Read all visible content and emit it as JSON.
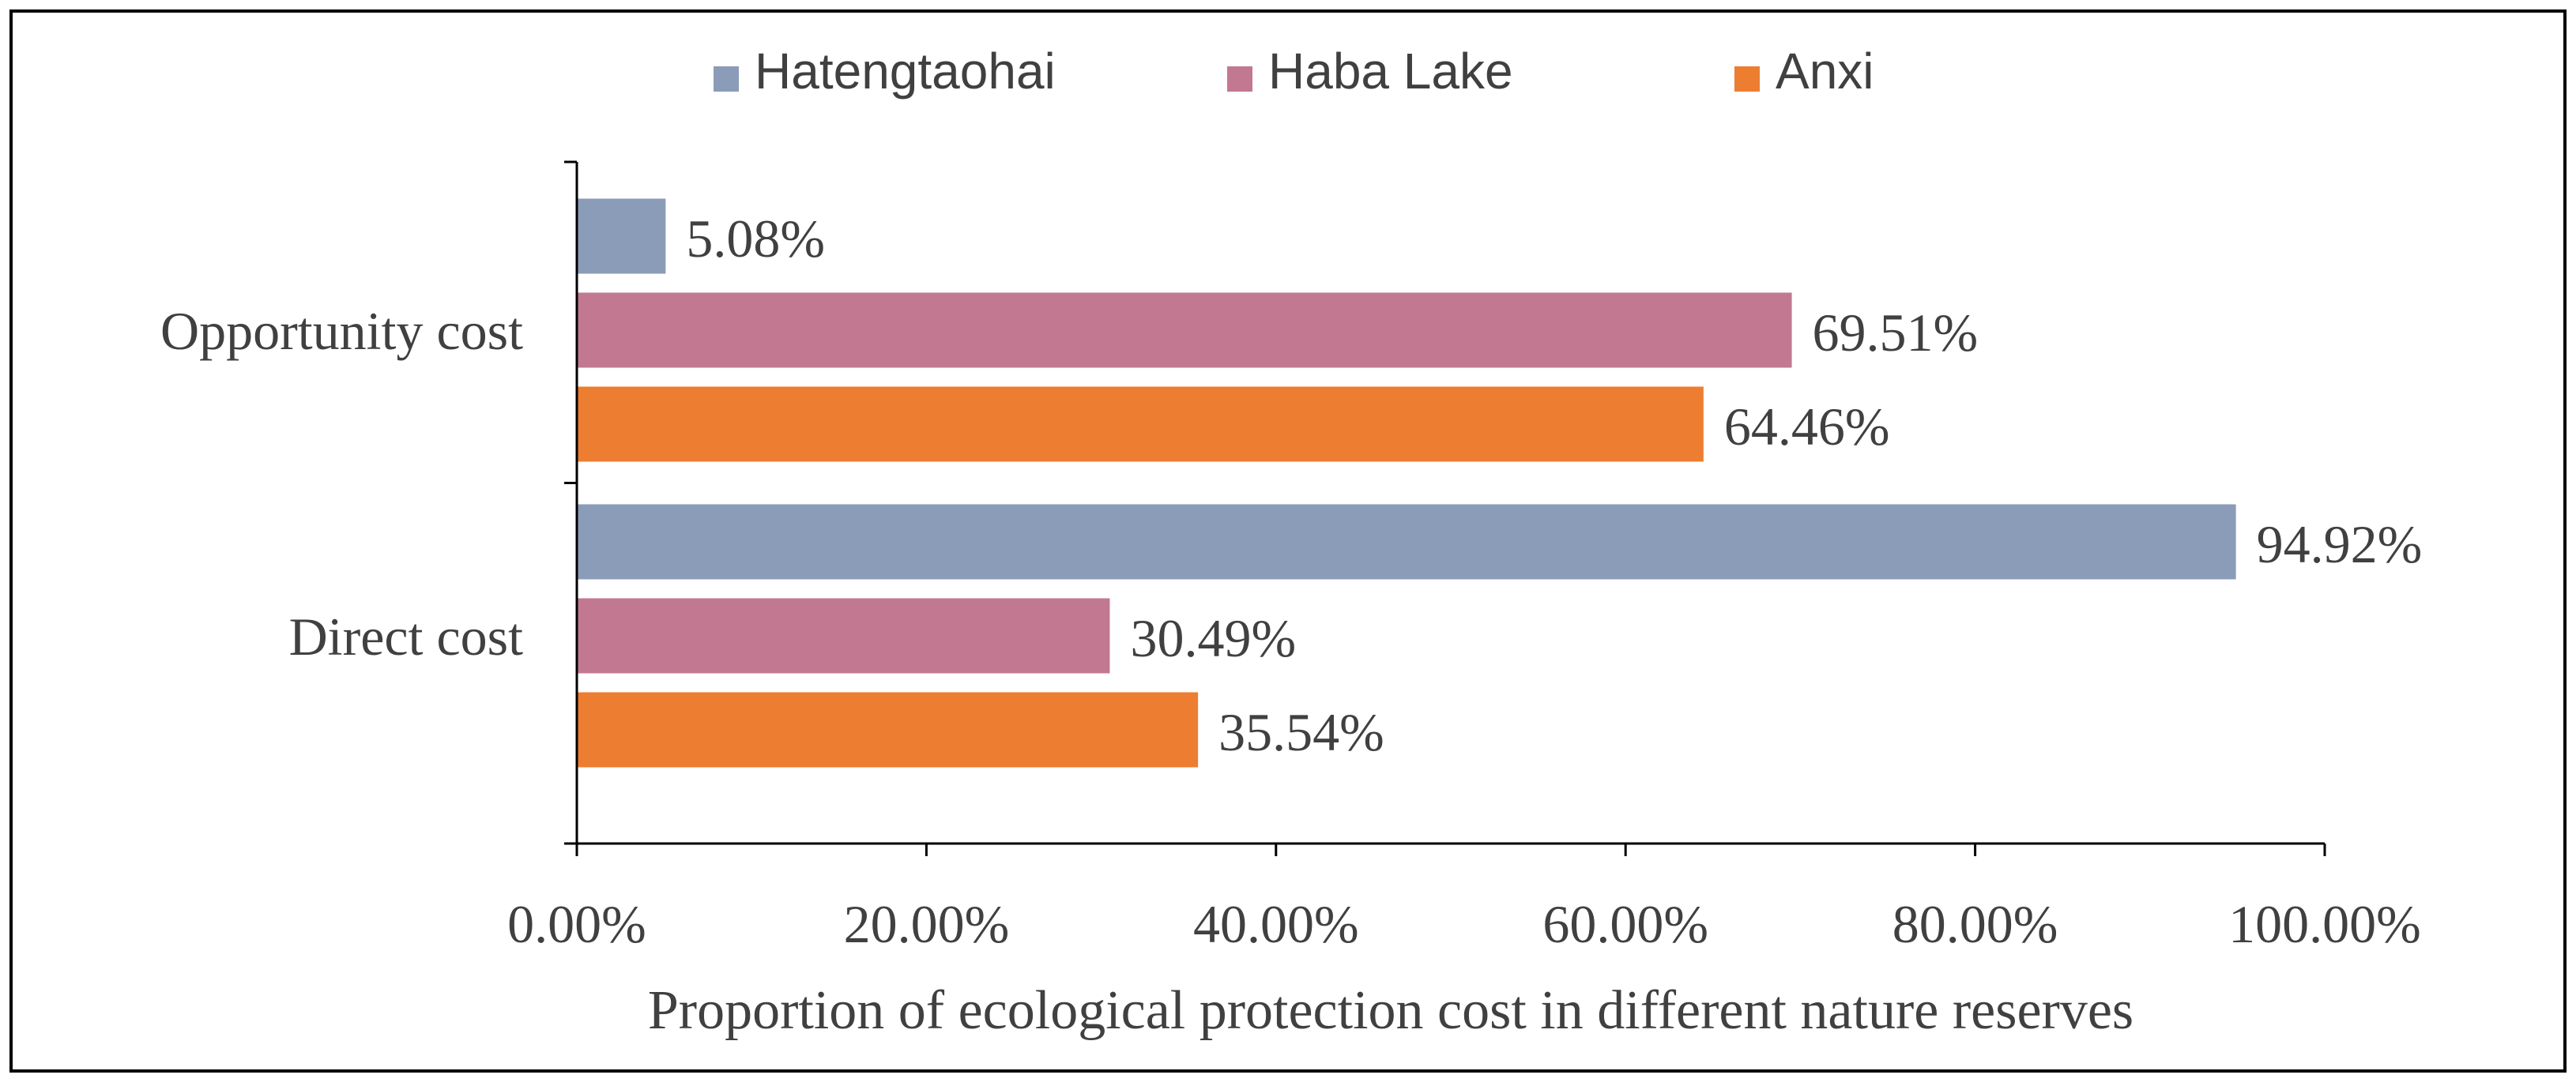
{
  "chart_data": {
    "type": "bar",
    "orientation": "horizontal",
    "categories": [
      "Opportunity cost",
      "Direct cost"
    ],
    "series": [
      {
        "name": "Hatengtaohai",
        "color": "#8a9cb8",
        "values": [
          5.08,
          94.92
        ],
        "labels": [
          "5.08%",
          "94.92%"
        ]
      },
      {
        "name": "Haba Lake",
        "color": "#c27890",
        "values": [
          69.51,
          30.49
        ],
        "labels": [
          "69.51%",
          "30.49%"
        ]
      },
      {
        "name": "Anxi",
        "color": "#ed7d31",
        "values": [
          64.46,
          35.54
        ],
        "labels": [
          "64.46%",
          "35.54%"
        ]
      }
    ],
    "xlim": [
      0,
      100
    ],
    "xticks": [
      0,
      20,
      40,
      60,
      80,
      100
    ],
    "xtick_labels": [
      "0.00%",
      "20.00%",
      "40.00%",
      "60.00%",
      "80.00%",
      "100.00%"
    ],
    "xlabel": "Proportion of ecological protection cost in different nature reserves",
    "ylabel": "",
    "title": "",
    "legend_position": "top-center",
    "grid": false
  }
}
